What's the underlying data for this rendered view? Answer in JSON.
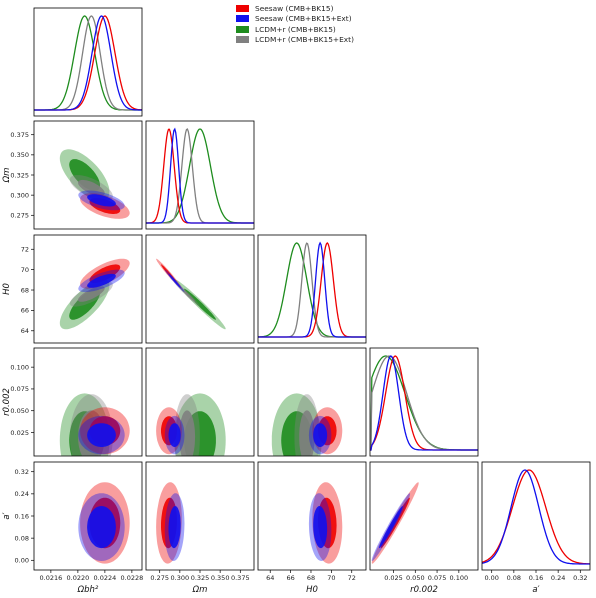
{
  "chart_data": {
    "type": "triangle",
    "legend": [
      {
        "name": "Seesaw (CMB+BK15)",
        "color": "#ee0000"
      },
      {
        "name": "Seesaw (CMB+BK15+Ext)",
        "color": "#1010ee"
      },
      {
        "name": "LCDM+r (CMB+BK15)",
        "color": "#1e8c1e"
      },
      {
        "name": "LCDM+r (CMB+BK15+Ext)",
        "color": "#808080"
      }
    ],
    "parameters": [
      {
        "label": "Ωbh²",
        "range": [
          0.02135,
          0.02295
        ],
        "ticks": [
          "0.0216",
          "0.0220",
          "0.0224",
          "0.0228"
        ],
        "tick_values": [
          0.0216,
          0.022,
          0.0224,
          0.0228
        ]
      },
      {
        "label": "Ωm",
        "range": [
          0.258,
          0.392
        ],
        "ticks": [
          "0.275",
          "0.300",
          "0.325",
          "0.350",
          "0.375"
        ],
        "tick_values": [
          0.275,
          0.3,
          0.325,
          0.35,
          0.375
        ]
      },
      {
        "label": "H0",
        "range": [
          62.8,
          73.4
        ],
        "ticks": [
          "64",
          "66",
          "68",
          "70",
          "72"
        ],
        "tick_values": [
          64,
          66,
          68,
          70,
          72
        ]
      },
      {
        "label": "r0.002",
        "range": [
          -0.002,
          0.122
        ],
        "ticks": [
          "0.025",
          "0.050",
          "0.075",
          "0.100"
        ],
        "tick_values": [
          0.025,
          0.05,
          0.075,
          0.1
        ]
      },
      {
        "label": "a′",
        "range": [
          -0.035,
          0.355
        ],
        "ticks": [
          "0.00",
          "0.08",
          "0.16",
          "0.24",
          "0.32"
        ],
        "tick_values": [
          0.0,
          0.08,
          0.16,
          0.24,
          0.32
        ]
      }
    ],
    "series": [
      {
        "name": "Seesaw (CMB+BK15)",
        "present": [
          true,
          true,
          true,
          true,
          true
        ],
        "mean": [
          0.0224,
          0.2865,
          69.6,
          0.027,
          0.135
        ],
        "sigma": [
          0.00015,
          0.0065,
          0.6,
          0.011,
          0.06
        ],
        "corr": {
          "0-1": -0.55,
          "0-2": 0.7,
          "0-3": 0.0,
          "0-4": 0.0,
          "1-2": -0.98,
          "1-3": 0.0,
          "1-4": 0.1,
          "2-3": 0.0,
          "2-4": -0.1,
          "3-4": 0.98
        }
      },
      {
        "name": "Seesaw (CMB+BK15+Ext)",
        "present": [
          true,
          true,
          true,
          true,
          true
        ],
        "mean": [
          0.02235,
          0.2935,
          68.9,
          0.022,
          0.12
        ],
        "sigma": [
          0.00014,
          0.005,
          0.45,
          0.009,
          0.05
        ],
        "corr": {
          "0-1": -0.55,
          "0-2": 0.7,
          "0-3": 0.0,
          "0-4": 0.0,
          "1-2": -0.98,
          "1-3": 0.0,
          "1-4": 0.1,
          "2-3": 0.0,
          "2-4": -0.1,
          "3-4": 0.98
        }
      },
      {
        "name": "LCDM+r (CMB+BK15)",
        "present": [
          true,
          true,
          true,
          true,
          false
        ],
        "mean": [
          0.0221,
          0.325,
          66.6,
          0.016,
          0
        ],
        "sigma": [
          0.00015,
          0.013,
          1.0,
          0.022,
          0
        ],
        "corr": {
          "0-1": -0.65,
          "0-2": 0.75,
          "0-3": 0.0,
          "1-2": -0.98,
          "1-3": 0.0,
          "2-3": 0.0
        }
      },
      {
        "name": "LCDM+r (CMB+BK15+Ext)",
        "present": [
          true,
          true,
          true,
          true,
          false
        ],
        "mean": [
          0.0222,
          0.309,
          67.6,
          0.02,
          0
        ],
        "sigma": [
          0.00013,
          0.0065,
          0.5,
          0.02,
          0
        ],
        "corr": {
          "0-1": -0.65,
          "0-2": 0.75,
          "0-3": 0.0,
          "1-2": -0.98,
          "1-3": 0.0,
          "2-3": 0.0
        }
      }
    ],
    "draw_order": [
      "LCDM+r (CMB+BK15)",
      "LCDM+r (CMB+BK15+Ext)",
      "Seesaw (CMB+BK15)",
      "Seesaw (CMB+BK15+Ext)"
    ]
  }
}
